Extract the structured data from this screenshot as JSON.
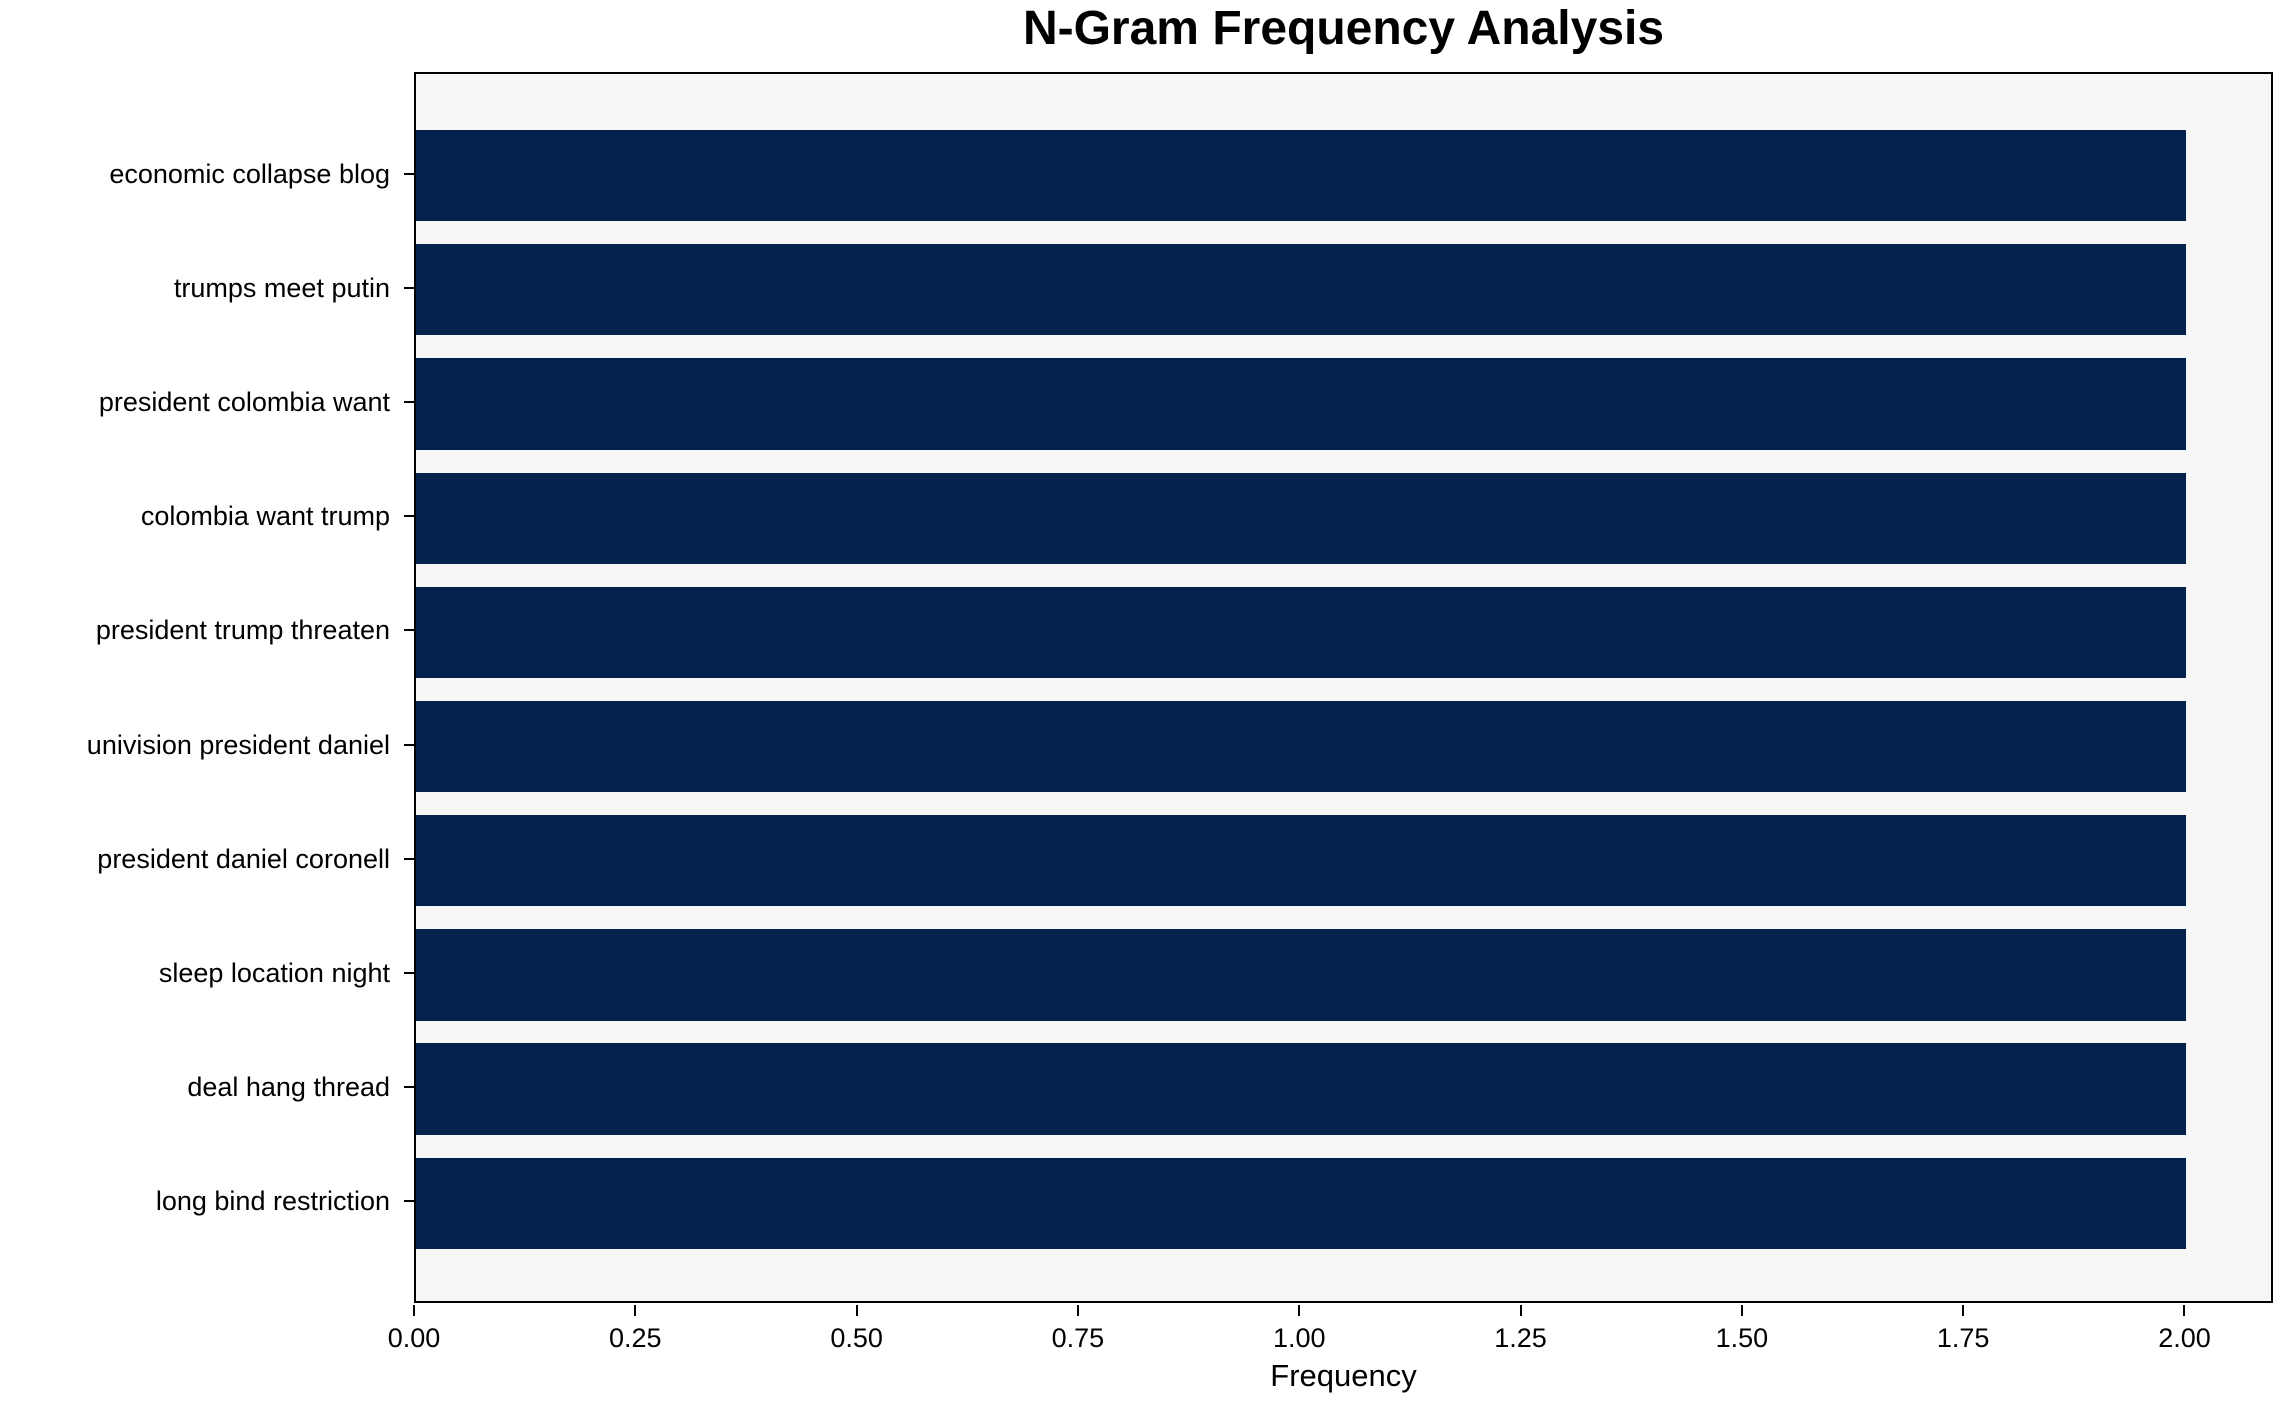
{
  "chart_data": {
    "type": "bar",
    "orientation": "horizontal",
    "title": "N-Gram Frequency Analysis",
    "xlabel": "Frequency",
    "ylabel": "",
    "categories": [
      "economic collapse blog",
      "trumps meet putin",
      "president colombia want",
      "colombia want trump",
      "president trump threaten",
      "univision president daniel",
      "president daniel coronell",
      "sleep location night",
      "deal hang thread",
      "long bind restriction"
    ],
    "values": [
      2,
      2,
      2,
      2,
      2,
      2,
      2,
      2,
      2,
      2
    ],
    "xlim": [
      0,
      2.1
    ],
    "xticks": [
      0,
      0.25,
      0.5,
      0.75,
      1.0,
      1.25,
      1.5,
      1.75,
      2.0
    ],
    "xtick_labels": [
      "0.00",
      "0.25",
      "0.50",
      "0.75",
      "1.00",
      "1.25",
      "1.50",
      "1.75",
      "2.00"
    ],
    "bar_height_ratio": 0.8,
    "grid": false,
    "legend": null,
    "bar_color": "#03234c",
    "plot_bg_color": "#f7f7f8",
    "figure_bg_color": "#ffffff",
    "spine_color": "#000000",
    "text_color": "#000000"
  }
}
